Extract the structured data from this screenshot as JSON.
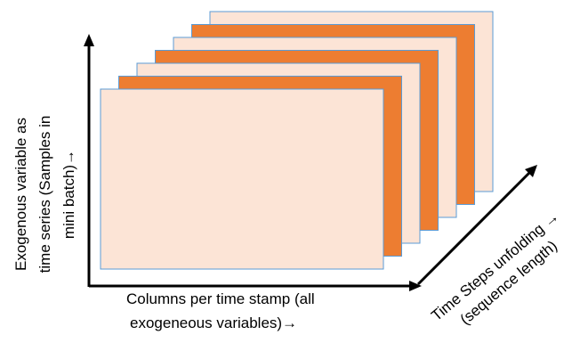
{
  "diagram": {
    "colors": {
      "light_sheet": "#fce4d6",
      "dark_sheet": "#ed7d31",
      "sheet_border": "#5b9bd5",
      "arrow": "#000000"
    },
    "sheets": [
      {
        "fill": "light"
      },
      {
        "fill": "dark"
      },
      {
        "fill": "light"
      },
      {
        "fill": "dark"
      },
      {
        "fill": "light"
      },
      {
        "fill": "dark"
      },
      {
        "fill": "light"
      }
    ],
    "y_axis_label": [
      "Exogenous variable as",
      "time series (Samples in",
      "mini batch)→"
    ],
    "x_axis_label": [
      "Columns per time stamp (all",
      "exogeneous variables)→"
    ],
    "z_axis_label": [
      "Time Steps unfolding →",
      "(sequence length)"
    ],
    "arrow_icons": [
      "up-arrow-icon",
      "right-arrow-icon",
      "diagonal-arrow-icon"
    ]
  }
}
